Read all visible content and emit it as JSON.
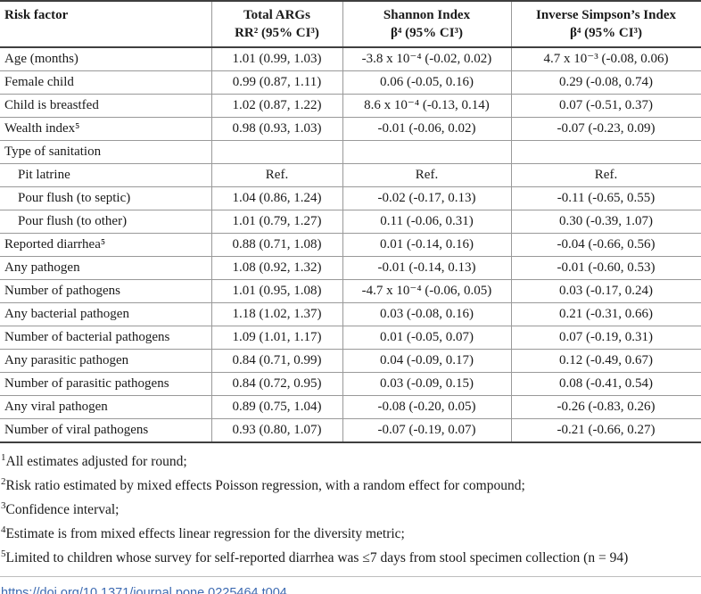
{
  "table": {
    "columns": [
      {
        "title": "Risk factor",
        "subtitle": ""
      },
      {
        "title": "Total ARGs",
        "subtitle": "RR² (95% CI³)"
      },
      {
        "title": "Shannon Index",
        "subtitle": "β⁴ (95% CI³)"
      },
      {
        "title": "Inverse Simpson’s Index",
        "subtitle": "β⁴ (95% CI³)"
      }
    ],
    "rows": [
      {
        "indent": false,
        "cells": [
          "Age (months)",
          "1.01 (0.99, 1.03)",
          "-3.8 x 10⁻⁴ (-0.02, 0.02)",
          "4.7 x 10⁻³ (-0.08, 0.06)"
        ]
      },
      {
        "indent": false,
        "cells": [
          "Female child",
          "0.99 (0.87, 1.11)",
          "0.06 (-0.05, 0.16)",
          "0.29 (-0.08, 0.74)"
        ]
      },
      {
        "indent": false,
        "cells": [
          "Child is breastfed",
          "1.02 (0.87, 1.22)",
          "8.6 x 10⁻⁴ (-0.13, 0.14)",
          "0.07 (-0.51, 0.37)"
        ]
      },
      {
        "indent": false,
        "cells": [
          "Wealth index⁵",
          "0.98 (0.93, 1.03)",
          "-0.01 (-0.06, 0.02)",
          "-0.07 (-0.23, 0.09)"
        ]
      },
      {
        "indent": false,
        "cells": [
          "Type of sanitation",
          "",
          "",
          ""
        ]
      },
      {
        "indent": true,
        "cells": [
          "Pit latrine",
          "Ref.",
          "Ref.",
          "Ref."
        ]
      },
      {
        "indent": true,
        "cells": [
          "Pour flush (to septic)",
          "1.04 (0.86, 1.24)",
          "-0.02 (-0.17, 0.13)",
          "-0.11 (-0.65, 0.55)"
        ]
      },
      {
        "indent": true,
        "cells": [
          "Pour flush (to other)",
          "1.01 (0.79, 1.27)",
          "0.11 (-0.06, 0.31)",
          "0.30 (-0.39, 1.07)"
        ]
      },
      {
        "indent": false,
        "cells": [
          "Reported diarrhea⁵",
          "0.88 (0.71, 1.08)",
          "0.01 (-0.14, 0.16)",
          "-0.04 (-0.66, 0.56)"
        ]
      },
      {
        "indent": false,
        "cells": [
          "Any pathogen",
          "1.08 (0.92, 1.32)",
          "-0.01 (-0.14, 0.13)",
          "-0.01 (-0.60, 0.53)"
        ]
      },
      {
        "indent": false,
        "cells": [
          "Number of pathogens",
          "1.01 (0.95, 1.08)",
          "-4.7 x 10⁻⁴ (-0.06, 0.05)",
          "0.03 (-0.17, 0.24)"
        ]
      },
      {
        "indent": false,
        "cells": [
          "Any bacterial pathogen",
          "1.18 (1.02, 1.37)",
          "0.03 (-0.08, 0.16)",
          "0.21 (-0.31, 0.66)"
        ]
      },
      {
        "indent": false,
        "cells": [
          "Number of bacterial pathogens",
          "1.09 (1.01, 1.17)",
          "0.01 (-0.05, 0.07)",
          "0.07 (-0.19, 0.31)"
        ]
      },
      {
        "indent": false,
        "cells": [
          "Any parasitic pathogen",
          "0.84 (0.71, 0.99)",
          "0.04 (-0.09, 0.17)",
          "0.12 (-0.49, 0.67)"
        ]
      },
      {
        "indent": false,
        "cells": [
          "Number of parasitic pathogens",
          "0.84 (0.72, 0.95)",
          "0.03 (-0.09, 0.15)",
          "0.08 (-0.41, 0.54)"
        ]
      },
      {
        "indent": false,
        "cells": [
          "Any viral pathogen",
          "0.89 (0.75, 1.04)",
          "-0.08 (-0.20, 0.05)",
          "-0.26 (-0.83, 0.26)"
        ]
      },
      {
        "indent": false,
        "cells": [
          "Number of viral pathogens",
          "0.93 (0.80, 1.07)",
          "-0.07 (-0.19, 0.07)",
          "-0.21 (-0.66, 0.27)"
        ]
      }
    ]
  },
  "footnotes": [
    {
      "marker": "1",
      "text": "All estimates adjusted for round;"
    },
    {
      "marker": "2",
      "text": "Risk ratio estimated by mixed effects Poisson regression, with a random effect for compound;"
    },
    {
      "marker": "3",
      "text": "Confidence interval;"
    },
    {
      "marker": "4",
      "text": "Estimate is from mixed effects linear regression for the diversity metric;"
    },
    {
      "marker": "5",
      "text": "Limited to children whose survey for self-reported diarrhea was ≤7 days from stool specimen collection (n = 94)"
    }
  ],
  "doi": {
    "label": "https://doi.org/10.1371/journal.pone.0225464.t004"
  },
  "colors": {
    "link_blue": "#3d6ab1",
    "border_dark": "#3f3f3f",
    "border_light": "#999999"
  }
}
